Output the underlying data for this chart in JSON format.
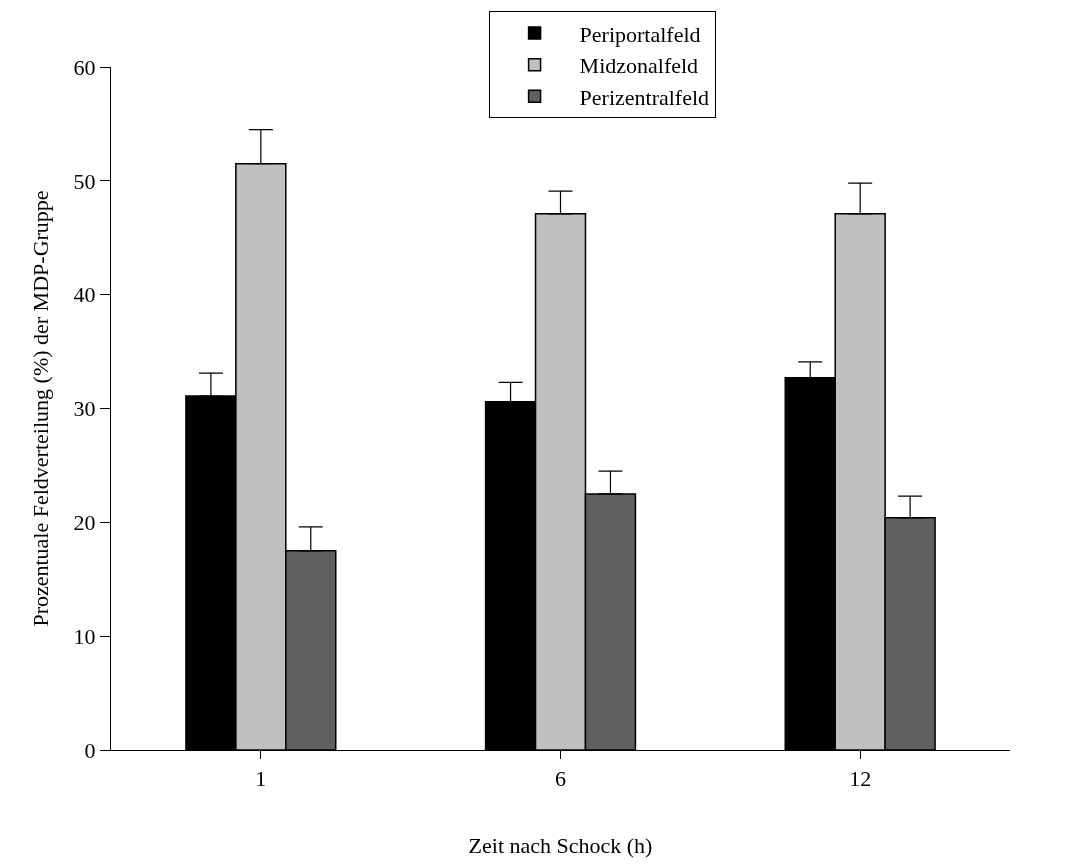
{
  "chart_data": {
    "type": "bar",
    "xlabel": "Zeit nach Schock (h)",
    "ylabel": "Prozentuale Feldverteilung (%) der MDP-Gruppe",
    "categories": [
      "1",
      "6",
      "12"
    ],
    "series": [
      {
        "name": "Periportalfeld",
        "color": "#000000",
        "values": [
          31.1,
          30.6,
          32.7
        ],
        "errors": [
          [
            31.1,
            33.1
          ],
          [
            30.6,
            32.3
          ],
          [
            32.7,
            34.1
          ]
        ]
      },
      {
        "name": "Midzonalfeld",
        "color": "#c0c0c0",
        "values": [
          51.5,
          47.1,
          47.1
        ],
        "errors": [
          [
            51.5,
            54.5
          ],
          [
            47.1,
            49.1
          ],
          [
            47.1,
            49.8
          ]
        ]
      },
      {
        "name": "Perizentralfeld",
        "color": "#606060",
        "values": [
          17.5,
          22.5,
          20.4
        ],
        "errors": [
          [
            17.5,
            19.6
          ],
          [
            22.5,
            24.5
          ],
          [
            20.4,
            22.3
          ]
        ]
      }
    ],
    "ylim": [
      0,
      60
    ],
    "yticks": [
      0,
      10,
      20,
      30,
      40,
      50,
      60
    ],
    "grid": false,
    "legend": "top"
  }
}
